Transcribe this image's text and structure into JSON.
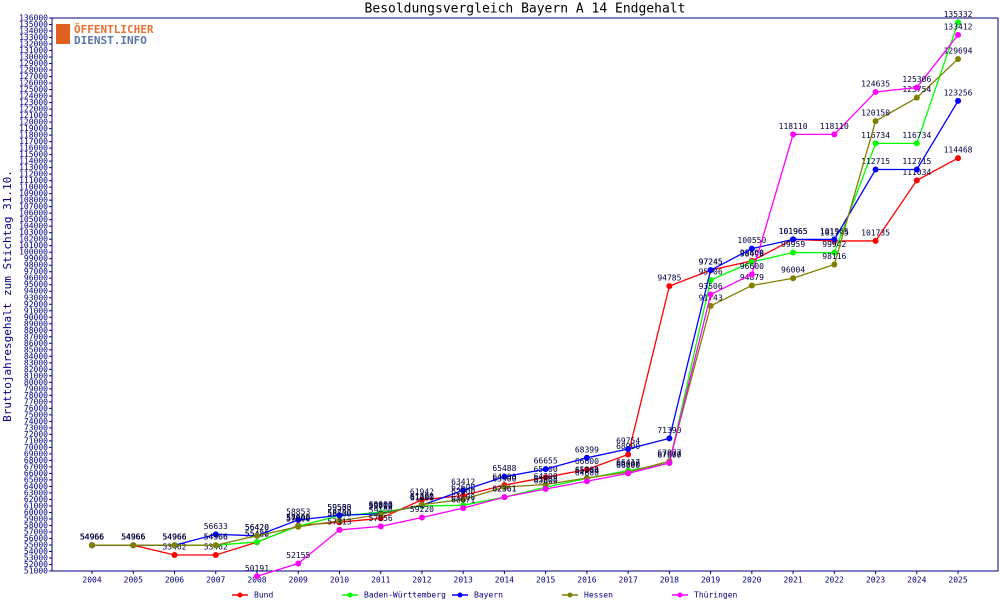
{
  "logo": [
    "ÖFFENTLICHER",
    "DIENST.INFO"
  ],
  "chart_data": {
    "type": "line",
    "title": "Besoldungsvergleich Bayern A 14 Endgehalt",
    "y_label": "Bruttojahresgehalt zum Stichtag 31.10.",
    "categories": [
      "2004",
      "2005",
      "2006",
      "2007",
      "2008",
      "2009",
      "2010",
      "2011",
      "2012",
      "2013",
      "2014",
      "2015",
      "2016",
      "2017",
      "2018",
      "2019",
      "2020",
      "2021",
      "2022",
      "2023",
      "2024",
      "2025"
    ],
    "series": [
      {
        "name": "Bund",
        "color": "#ff0000",
        "values": [
          54966,
          54966,
          53462,
          53462,
          55420,
          58000,
          58500,
          59100,
          61942,
          62600,
          64200,
          65400,
          66600,
          68900,
          94785,
          97245,
          98660,
          101965,
          101735,
          101735,
          111034,
          114468
        ]
      },
      {
        "name": "Baden-Württemberg",
        "color": "#00ff00",
        "values": [
          54966,
          54966,
          54966,
          54966,
          55452,
          57900,
          59500,
          60000,
          61000,
          61100,
          62361,
          63868,
          65244,
          66417,
          67577,
          95706,
          98498,
          99959,
          99942,
          116734,
          116734,
          135332
        ]
      },
      {
        "name": "Bayern",
        "color": "#0000ff",
        "values": [
          54966,
          54966,
          54966,
          56633,
          56420,
          58853,
          59553,
          59800,
          61100,
          63412,
          65488,
          66655,
          68399,
          69754,
          71390,
          97245,
          100550,
          101965,
          101965,
          112715,
          112715,
          123256
        ]
      },
      {
        "name": "Hessen",
        "color": "#808000",
        "values": [
          54966,
          54966,
          54966,
          54966,
          56420,
          57800,
          58700,
          59700,
          61200,
          62000,
          63900,
          64300,
          65300,
          66200,
          67877,
          91743,
          94879,
          96004,
          98116,
          120150,
          123754,
          129694
        ]
      },
      {
        "name": "Thüringen",
        "color": "#ff00ff",
        "values": [
          null,
          null,
          null,
          null,
          50191,
          52155,
          57313,
          57856,
          59220,
          60671,
          62361,
          63600,
          64800,
          66000,
          67600,
          93506,
          96600,
          118110,
          118110,
          124635,
          125306,
          133412
        ]
      }
    ],
    "ylim": [
      51000,
      136000
    ],
    "yticks": [
      51000,
      52000,
      53000,
      54000,
      55000,
      56000,
      57000,
      58000,
      59000,
      60000,
      61000,
      62000,
      63000,
      64000,
      65000,
      66000,
      67000,
      68000,
      69000,
      70000,
      71000,
      72000,
      73000,
      74000,
      75000,
      76000,
      77000,
      78000,
      79000,
      80000,
      81000,
      82000,
      83000,
      84000,
      85000,
      86000,
      87000,
      88000,
      89000,
      90000,
      91000,
      92000,
      93000,
      94000,
      95000,
      96000,
      97000,
      98000,
      99000,
      100000,
      101000,
      102000,
      103000,
      104000,
      105000,
      106000,
      107000,
      108000,
      109000,
      110000,
      111000,
      112000,
      113000,
      114000,
      115000,
      116000,
      117000,
      118000,
      119000,
      120000,
      121000,
      122000,
      123000,
      124000,
      125000,
      126000,
      127000,
      128000,
      129000,
      130000,
      131000,
      132000,
      133000,
      134000,
      135000,
      136000
    ],
    "legend": "bottom"
  }
}
